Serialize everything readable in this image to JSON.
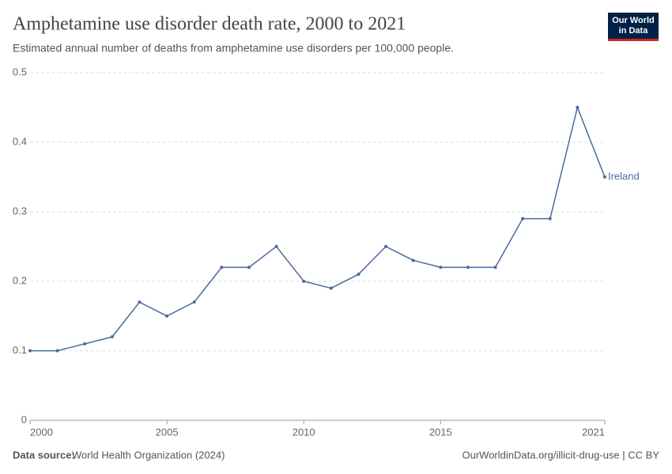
{
  "chart_data": {
    "type": "line",
    "title": "Amphetamine use disorder death rate, 2000 to 2021",
    "subtitle": "Estimated annual number of deaths from amphetamine use disorders per 100,000 people.",
    "x": [
      2000,
      2001,
      2002,
      2003,
      2004,
      2005,
      2006,
      2007,
      2008,
      2009,
      2010,
      2011,
      2012,
      2013,
      2014,
      2015,
      2016,
      2017,
      2018,
      2019,
      2020,
      2021
    ],
    "series": [
      {
        "name": "Ireland",
        "color": "#4c6a9c",
        "values": [
          0.1,
          0.1,
          0.11,
          0.12,
          0.17,
          0.15,
          0.17,
          0.22,
          0.22,
          0.25,
          0.2,
          0.19,
          0.21,
          0.25,
          0.23,
          0.22,
          0.22,
          0.22,
          0.29,
          0.29,
          0.45,
          0.35
        ]
      }
    ],
    "xlim": [
      2000,
      2021
    ],
    "xticks": [
      2000,
      2005,
      2010,
      2015,
      2021
    ],
    "ylim": [
      0,
      0.5
    ],
    "yticks": [
      0,
      0.1,
      0.2,
      0.3,
      0.4,
      0.5
    ],
    "grid": true,
    "source_label": "Data source:",
    "source": "World Health Organization (2024)",
    "footer_right": "OurWorldinData.org/illicit-drug-use | CC BY",
    "logo": [
      "Our World",
      "in Data"
    ]
  }
}
